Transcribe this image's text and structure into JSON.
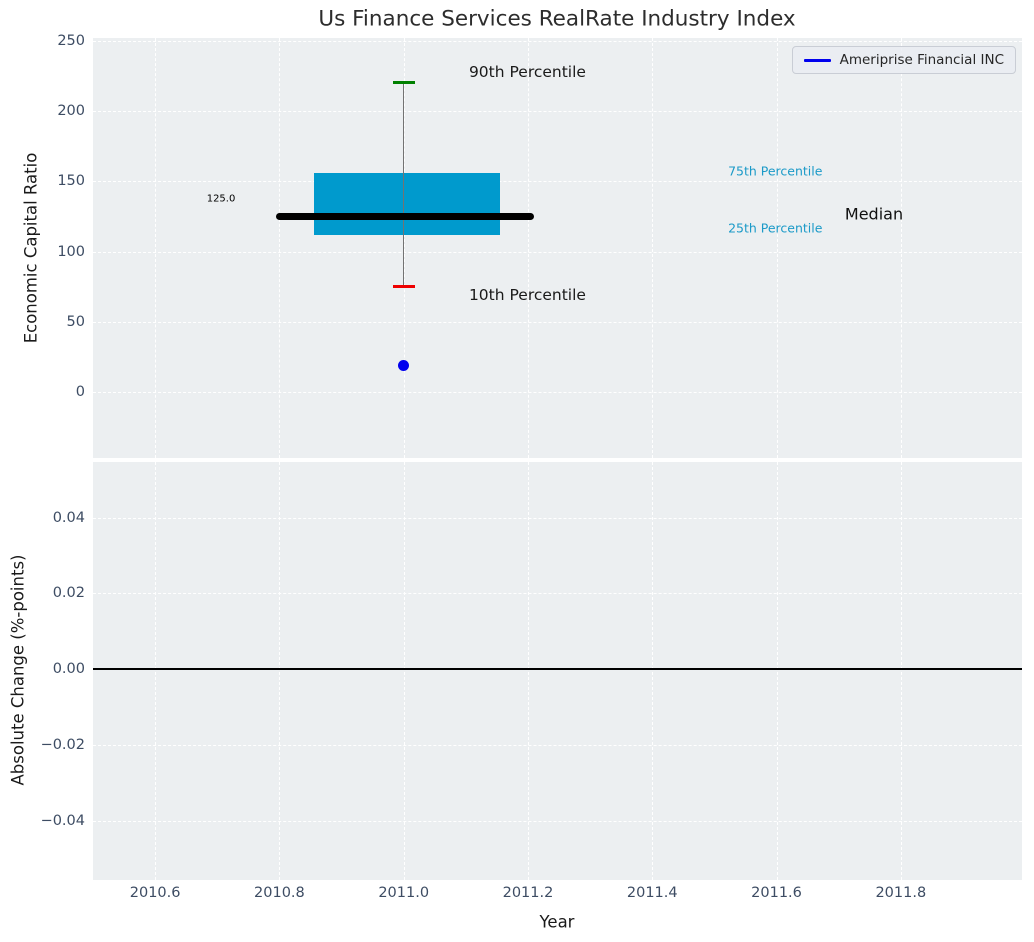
{
  "figure": {
    "title": "Us Finance Services RealRate Industry Index",
    "bg_color": "#ffffff",
    "axes_bg_color": "#eceff1",
    "grid_color": "#ffffff",
    "tick_label_color": "#3d4c63",
    "text_color": "#1a1a1a"
  },
  "legend": {
    "label": "Ameriprise Financial INC",
    "line_color": "#0000ee",
    "position": "upper right"
  },
  "chart_data": [
    {
      "type": "boxplot",
      "panel": "top",
      "title": "Us Finance Services RealRate Industry Index",
      "ylabel": "Economic Capital Ratio",
      "xlim": [
        2010.5,
        2011.995
      ],
      "ylim": [
        -47,
        252
      ],
      "grid": true,
      "xticks": [
        {
          "v": 2010.6,
          "label": "2010.6"
        },
        {
          "v": 2010.8,
          "label": "2010.8"
        },
        {
          "v": 2011.0,
          "label": "2011.0"
        },
        {
          "v": 2011.2,
          "label": "2011.2"
        },
        {
          "v": 2011.4,
          "label": "2011.4"
        },
        {
          "v": 2011.6,
          "label": "2011.6"
        },
        {
          "v": 2011.8,
          "label": "2011.8"
        }
      ],
      "show_xtick_labels": false,
      "yticks": [
        {
          "v": 0,
          "label": "0"
        },
        {
          "v": 50,
          "label": "50"
        },
        {
          "v": 100,
          "label": "100"
        },
        {
          "v": 150,
          "label": "150"
        },
        {
          "v": 200,
          "label": "200"
        },
        {
          "v": 250,
          "label": "250"
        }
      ],
      "box": {
        "x": 2011.0,
        "box_left": 2010.855,
        "box_right": 2011.155,
        "q1": 112,
        "q3": 156,
        "median": 125,
        "median_left": 2010.795,
        "median_right": 2011.21,
        "p10": 75,
        "p90": 220,
        "colors": {
          "box": "#009acd",
          "median": "#000000",
          "whisker": "#737373",
          "p90_cap": "#008000",
          "p10_cap": "#ee0000"
        }
      },
      "points": [
        {
          "x": 2011.0,
          "y": 19,
          "color": "#0000ee",
          "series": "Ameriprise Financial INC"
        }
      ],
      "annotations": [
        {
          "name": "p90-label",
          "text": "90th Percentile",
          "x": 2011.105,
          "y": 228,
          "color": "#1a1a1a",
          "font_size": 15.5
        },
        {
          "name": "p10-label",
          "text": "10th Percentile",
          "x": 2011.105,
          "y": 69,
          "color": "#1a1a1a",
          "font_size": 15.5
        },
        {
          "name": "median-value-label",
          "text": "125.0",
          "x": 2010.683,
          "y": 137.5,
          "color": "#000000",
          "font_size": 10
        },
        {
          "name": "p75-label",
          "text": "75th Percentile",
          "x": 2011.522,
          "y": 157,
          "color": "#1b9ac8",
          "font_size": 12.5
        },
        {
          "name": "p25-label",
          "text": "25th Percentile",
          "x": 2011.522,
          "y": 117,
          "color": "#1b9ac8",
          "font_size": 12.5
        },
        {
          "name": "median-label",
          "text": "Median",
          "x": 2011.71,
          "y": 127,
          "color": "#111111",
          "font_size": 16
        }
      ]
    },
    {
      "type": "line",
      "panel": "bottom",
      "xlabel": "Year",
      "ylabel": "Absolute Change (%-points)",
      "xlim": [
        2010.5,
        2011.995
      ],
      "ylim": [
        -0.0557,
        0.0547
      ],
      "grid": true,
      "xticks": [
        {
          "v": 2010.6,
          "label": "2010.6"
        },
        {
          "v": 2010.8,
          "label": "2010.8"
        },
        {
          "v": 2011.0,
          "label": "2011.0"
        },
        {
          "v": 2011.2,
          "label": "2011.2"
        },
        {
          "v": 2011.4,
          "label": "2011.4"
        },
        {
          "v": 2011.6,
          "label": "2011.6"
        },
        {
          "v": 2011.8,
          "label": "2011.8"
        }
      ],
      "show_xtick_labels": true,
      "yticks": [
        {
          "v": 0.04,
          "label": "0.04"
        },
        {
          "v": 0.02,
          "label": "0.02"
        },
        {
          "v": 0.0,
          "label": "0.00"
        },
        {
          "v": -0.02,
          "label": "−0.02"
        },
        {
          "v": -0.04,
          "label": "−0.04"
        }
      ],
      "zero_line": {
        "y": 0.0,
        "color": "#000000"
      },
      "series": []
    }
  ]
}
